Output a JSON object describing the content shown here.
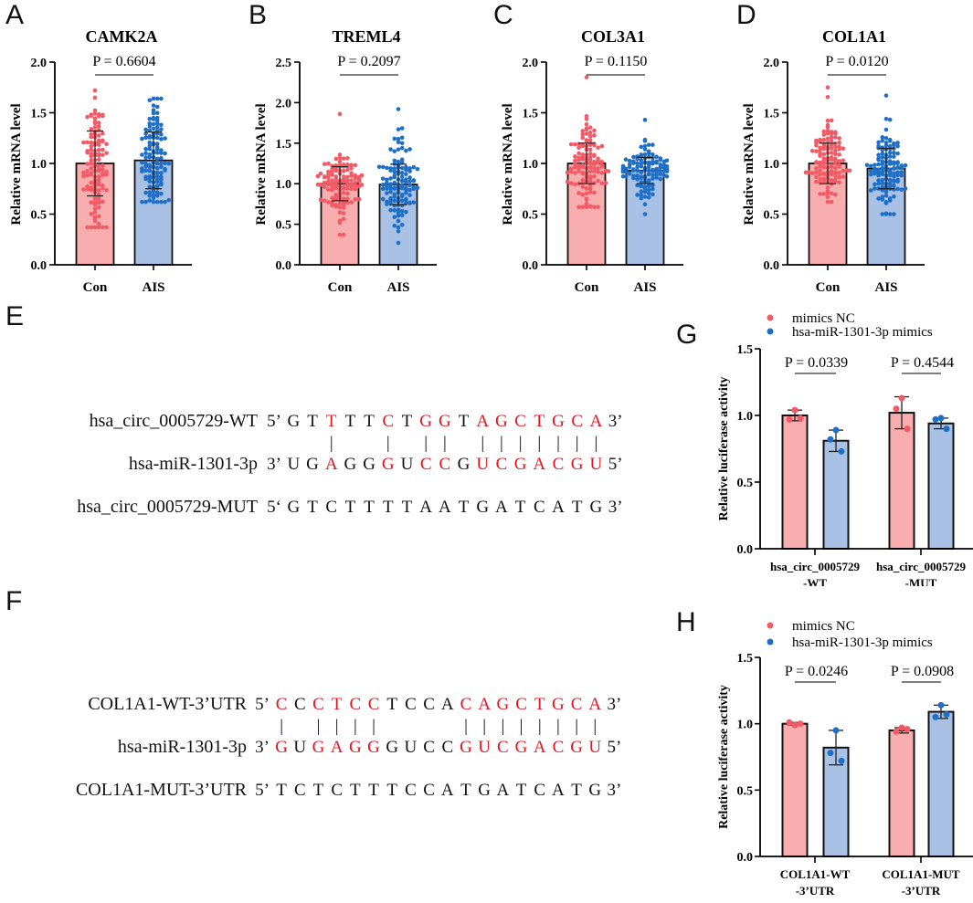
{
  "colors": {
    "con_bar": "#f8aeae",
    "con_dot": "#f25a66",
    "ais_bar": "#a8c1e4",
    "ais_dot": "#1f6fc6",
    "seq_red": "#e8141e",
    "seq_black": "#111111"
  },
  "panel_letters": {
    "A": "A",
    "B": "B",
    "C": "C",
    "D": "D",
    "E": "E",
    "F": "F",
    "G": "G",
    "H": "H"
  },
  "chart_data": [
    {
      "id": "A",
      "type": "bar",
      "title": "CAMK2A",
      "ylabel": "Relative mRNA level",
      "ylim": [
        0,
        2.0
      ],
      "yticks": [
        "0.0",
        "0.5",
        "1.0",
        "1.5",
        "2.0"
      ],
      "ytick_values": [
        0,
        0.5,
        1.0,
        1.5,
        2.0
      ],
      "categories": [
        "Con",
        "AIS"
      ],
      "pvalue": "P = 0.6604",
      "groups": [
        {
          "name": "Con",
          "mean": 1.0,
          "sd": 0.32,
          "n": 120,
          "min": 0.37,
          "max": 1.72
        },
        {
          "name": "AIS",
          "mean": 1.03,
          "sd": 0.28,
          "n": 120,
          "min": 0.62,
          "max": 1.64
        }
      ]
    },
    {
      "id": "B",
      "type": "bar",
      "title": "TREML4",
      "ylabel": "Relative mRNA level",
      "ylim": [
        0,
        2.5
      ],
      "yticks": [
        "0.0",
        "0.5",
        "1.0",
        "1.5",
        "2.0",
        "2.5"
      ],
      "ytick_values": [
        0,
        0.5,
        1.0,
        1.5,
        2.0,
        2.5
      ],
      "categories": [
        "Con",
        "AIS"
      ],
      "pvalue": "P = 0.2097",
      "groups": [
        {
          "name": "Con",
          "mean": 1.0,
          "sd": 0.21,
          "n": 120,
          "min": 0.37,
          "max": 1.86
        },
        {
          "name": "AIS",
          "mean": 0.99,
          "sd": 0.25,
          "n": 120,
          "min": 0.27,
          "max": 1.92
        }
      ]
    },
    {
      "id": "C",
      "type": "bar",
      "title": "COL3A1",
      "ylabel": "Relative mRNA level",
      "ylim": [
        0,
        2.0
      ],
      "yticks": [
        "0.0",
        "0.5",
        "1.0",
        "1.5",
        "2.0"
      ],
      "ytick_values": [
        0,
        0.5,
        1.0,
        1.5,
        2.0
      ],
      "categories": [
        "Con",
        "AIS"
      ],
      "pvalue": "P = 0.1150",
      "groups": [
        {
          "name": "Con",
          "mean": 1.0,
          "sd": 0.2,
          "n": 120,
          "min": 0.57,
          "max": 1.85
        },
        {
          "name": "AIS",
          "mean": 0.93,
          "sd": 0.13,
          "n": 120,
          "min": 0.5,
          "max": 1.43
        }
      ]
    },
    {
      "id": "D",
      "type": "bar",
      "title": "COL1A1",
      "ylabel": "Relative mRNA level",
      "ylim": [
        0,
        2.0
      ],
      "yticks": [
        "0.0",
        "0.5",
        "1.0",
        "1.5",
        "2.0"
      ],
      "ytick_values": [
        0,
        0.5,
        1.0,
        1.5,
        2.0
      ],
      "categories": [
        "Con",
        "AIS"
      ],
      "pvalue": "P = 0.0120",
      "groups": [
        {
          "name": "Con",
          "mean": 1.0,
          "sd": 0.2,
          "n": 120,
          "min": 0.62,
          "max": 1.75
        },
        {
          "name": "AIS",
          "mean": 0.95,
          "sd": 0.2,
          "n": 120,
          "min": 0.5,
          "max": 1.67
        }
      ]
    },
    {
      "id": "G",
      "type": "bar",
      "ylabel": "Relative luciferase activity",
      "ylim": [
        0,
        1.5
      ],
      "yticks": [
        "0.0",
        "0.5",
        "1.0",
        "1.5"
      ],
      "ytick_values": [
        0,
        0.5,
        1.0,
        1.5
      ],
      "legend": [
        "mimics NC",
        "hsa-miR-1301-3p mimics"
      ],
      "legend_position": "top",
      "categories": [
        [
          "hsa_circ_0005729",
          "-WT"
        ],
        [
          "hsa_circ_0005729",
          "-MUT"
        ]
      ],
      "pvalues": [
        "P = 0.0339",
        "P = 0.4544"
      ],
      "series": [
        {
          "name": "mimics NC",
          "means": [
            1.0,
            1.02
          ],
          "sd": [
            0.04,
            0.12
          ],
          "points": [
            [
              1.04,
              0.97,
              0.98
            ],
            [
              1.13,
              1.05,
              0.9
            ]
          ]
        },
        {
          "name": "hsa-miR-1301-3p mimics",
          "means": [
            0.81,
            0.94
          ],
          "sd": [
            0.08,
            0.04
          ],
          "points": [
            [
              0.89,
              0.82,
              0.73
            ],
            [
              0.98,
              0.97,
              0.9
            ]
          ]
        }
      ]
    },
    {
      "id": "H",
      "type": "bar",
      "ylabel": "Relative luciferase activity",
      "ylim": [
        0,
        1.5
      ],
      "yticks": [
        "0.0",
        "0.5",
        "1.0",
        "1.5"
      ],
      "ytick_values": [
        0,
        0.5,
        1.0,
        1.5
      ],
      "legend": [
        "mimics NC",
        "hsa-miR-1301-3p mimics"
      ],
      "legend_position": "top",
      "categories": [
        [
          "COL1A1-WT",
          "-3’UTR"
        ],
        [
          "COL1A1-MUT",
          "-3’UTR"
        ]
      ],
      "pvalues": [
        "P = 0.0246",
        "P = 0.0908"
      ],
      "series": [
        {
          "name": "mimics NC",
          "means": [
            1.0,
            0.95
          ],
          "sd": [
            0.01,
            0.02
          ],
          "points": [
            [
              0.99,
              1.01,
              1.0
            ],
            [
              0.97,
              0.94,
              0.96
            ]
          ]
        },
        {
          "name": "hsa-miR-1301-3p mimics",
          "means": [
            0.82,
            1.09
          ],
          "sd": [
            0.13,
            0.05
          ],
          "points": [
            [
              0.95,
              0.78,
              0.72
            ],
            [
              1.14,
              1.05,
              1.07
            ]
          ]
        }
      ]
    }
  ],
  "sequences": {
    "E": {
      "labels": [
        "hsa_circ_0005729-WT",
        "hsa-miR-1301-3p",
        "hsa_circ_0005729-MUT"
      ],
      "rows": [
        {
          "prefix": "5’",
          "seq": "GTTTTCTGGTAGCTGCA",
          "suffix": "3’",
          "red": [
            2,
            5,
            7,
            8,
            10,
            11,
            12,
            13,
            14,
            15,
            16
          ]
        },
        {
          "prefix": "3’",
          "seq": "UGAGGGUCCGUCGACGU",
          "suffix": "5’",
          "red": [
            2,
            5,
            7,
            8,
            10,
            11,
            12,
            13,
            14,
            15,
            16
          ]
        },
        {
          "prefix": "5‘",
          "seq": "GTCTTTTAATGATCATG",
          "suffix": "3’",
          "red": []
        }
      ],
      "pairs": [
        2,
        5,
        7,
        8,
        10,
        11,
        12,
        13,
        14,
        15,
        16
      ]
    },
    "F": {
      "labels": [
        "COL1A1-WT-3’UTR",
        "hsa-miR-1301-3p",
        "COL1A1-MUT-3’UTR"
      ],
      "rows": [
        {
          "prefix": "5’",
          "seq": "CCCTCCTCCACAGCTGCA",
          "suffix": "3’",
          "red": [
            0,
            2,
            3,
            4,
            5,
            10,
            11,
            12,
            13,
            14,
            15,
            16,
            17
          ]
        },
        {
          "prefix": "3’",
          "seq": "GUGAGGGUCCGUCGACGU",
          "suffix": "5’",
          "red": [
            0,
            2,
            3,
            4,
            5,
            10,
            11,
            12,
            13,
            14,
            15,
            16,
            17
          ]
        },
        {
          "prefix": "5’",
          "seq": "TCTCTTTCCATGATCATG",
          "suffix": "3’",
          "red": []
        }
      ],
      "pairs": [
        0,
        2,
        3,
        4,
        5,
        10,
        11,
        12,
        13,
        14,
        15,
        16,
        17
      ]
    }
  }
}
